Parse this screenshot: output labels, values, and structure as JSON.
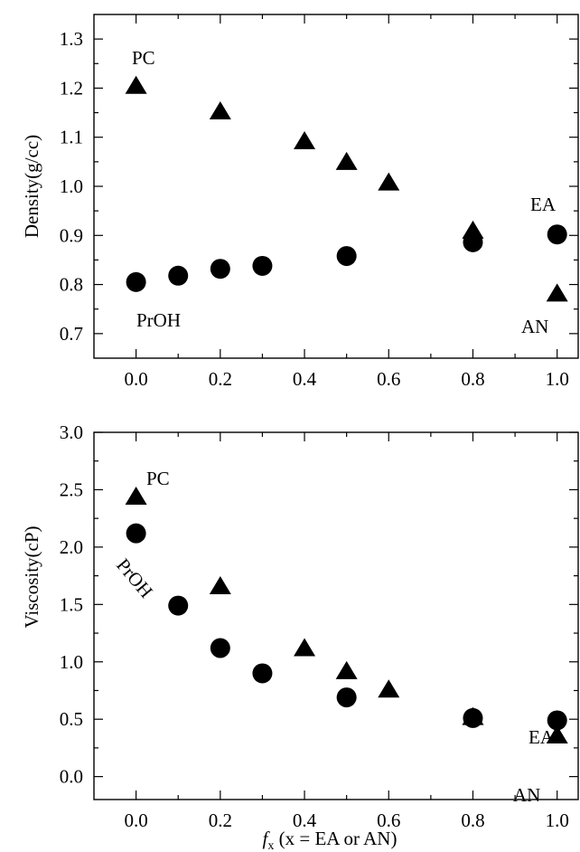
{
  "chart_data": [
    {
      "type": "scatter",
      "ylabel": "Density(g/cc)",
      "xlim": [
        -0.1,
        1.05
      ],
      "ylim": [
        0.65,
        1.35
      ],
      "xticks": [
        "0.0",
        "0.2",
        "0.4",
        "0.6",
        "0.8",
        "1.0"
      ],
      "yticks": [
        "0.7",
        "0.8",
        "0.9",
        "1.0",
        "1.1",
        "1.2",
        "1.3"
      ],
      "series": [
        {
          "marker": "triangle",
          "x": [
            0.0,
            0.2,
            0.4,
            0.5,
            0.6,
            0.8,
            1.0
          ],
          "y": [
            1.205,
            1.153,
            1.092,
            1.05,
            1.008,
            0.91,
            0.782
          ]
        },
        {
          "marker": "circle",
          "x": [
            0.0,
            0.1,
            0.2,
            0.3,
            0.5,
            0.8,
            1.0
          ],
          "y": [
            0.805,
            0.818,
            0.832,
            0.838,
            0.858,
            0.886,
            0.902
          ]
        }
      ],
      "annotations": [
        {
          "text": "PC"
        },
        {
          "text": "PrOH"
        },
        {
          "text": "EA"
        },
        {
          "text": "AN"
        }
      ]
    },
    {
      "type": "scatter",
      "ylabel": "Viscosity(cP)",
      "xlabel_prefix": "f",
      "xlabel_sub": "x",
      "xlabel_rest": " (x = EA or AN)",
      "xlim": [
        -0.1,
        1.05
      ],
      "ylim": [
        -0.2,
        3.0
      ],
      "xticks": [
        "0.0",
        "0.2",
        "0.4",
        "0.6",
        "0.8",
        "1.0"
      ],
      "yticks": [
        "0.0",
        "0.5",
        "1.0",
        "1.5",
        "2.0",
        "2.5",
        "3.0"
      ],
      "series": [
        {
          "marker": "triangle",
          "x": [
            0.0,
            0.2,
            0.4,
            0.5,
            0.6,
            0.8,
            1.0
          ],
          "y": [
            2.44,
            1.66,
            1.12,
            0.92,
            0.76,
            0.52,
            0.36
          ]
        },
        {
          "marker": "circle",
          "x": [
            0.0,
            0.1,
            0.2,
            0.3,
            0.5,
            0.8,
            1.0
          ],
          "y": [
            2.12,
            1.49,
            1.12,
            0.9,
            0.69,
            0.51,
            0.49
          ]
        }
      ],
      "annotations": [
        {
          "text": "PC"
        },
        {
          "text": "PrOH"
        },
        {
          "text": "EA"
        },
        {
          "text": "AN"
        }
      ]
    }
  ]
}
